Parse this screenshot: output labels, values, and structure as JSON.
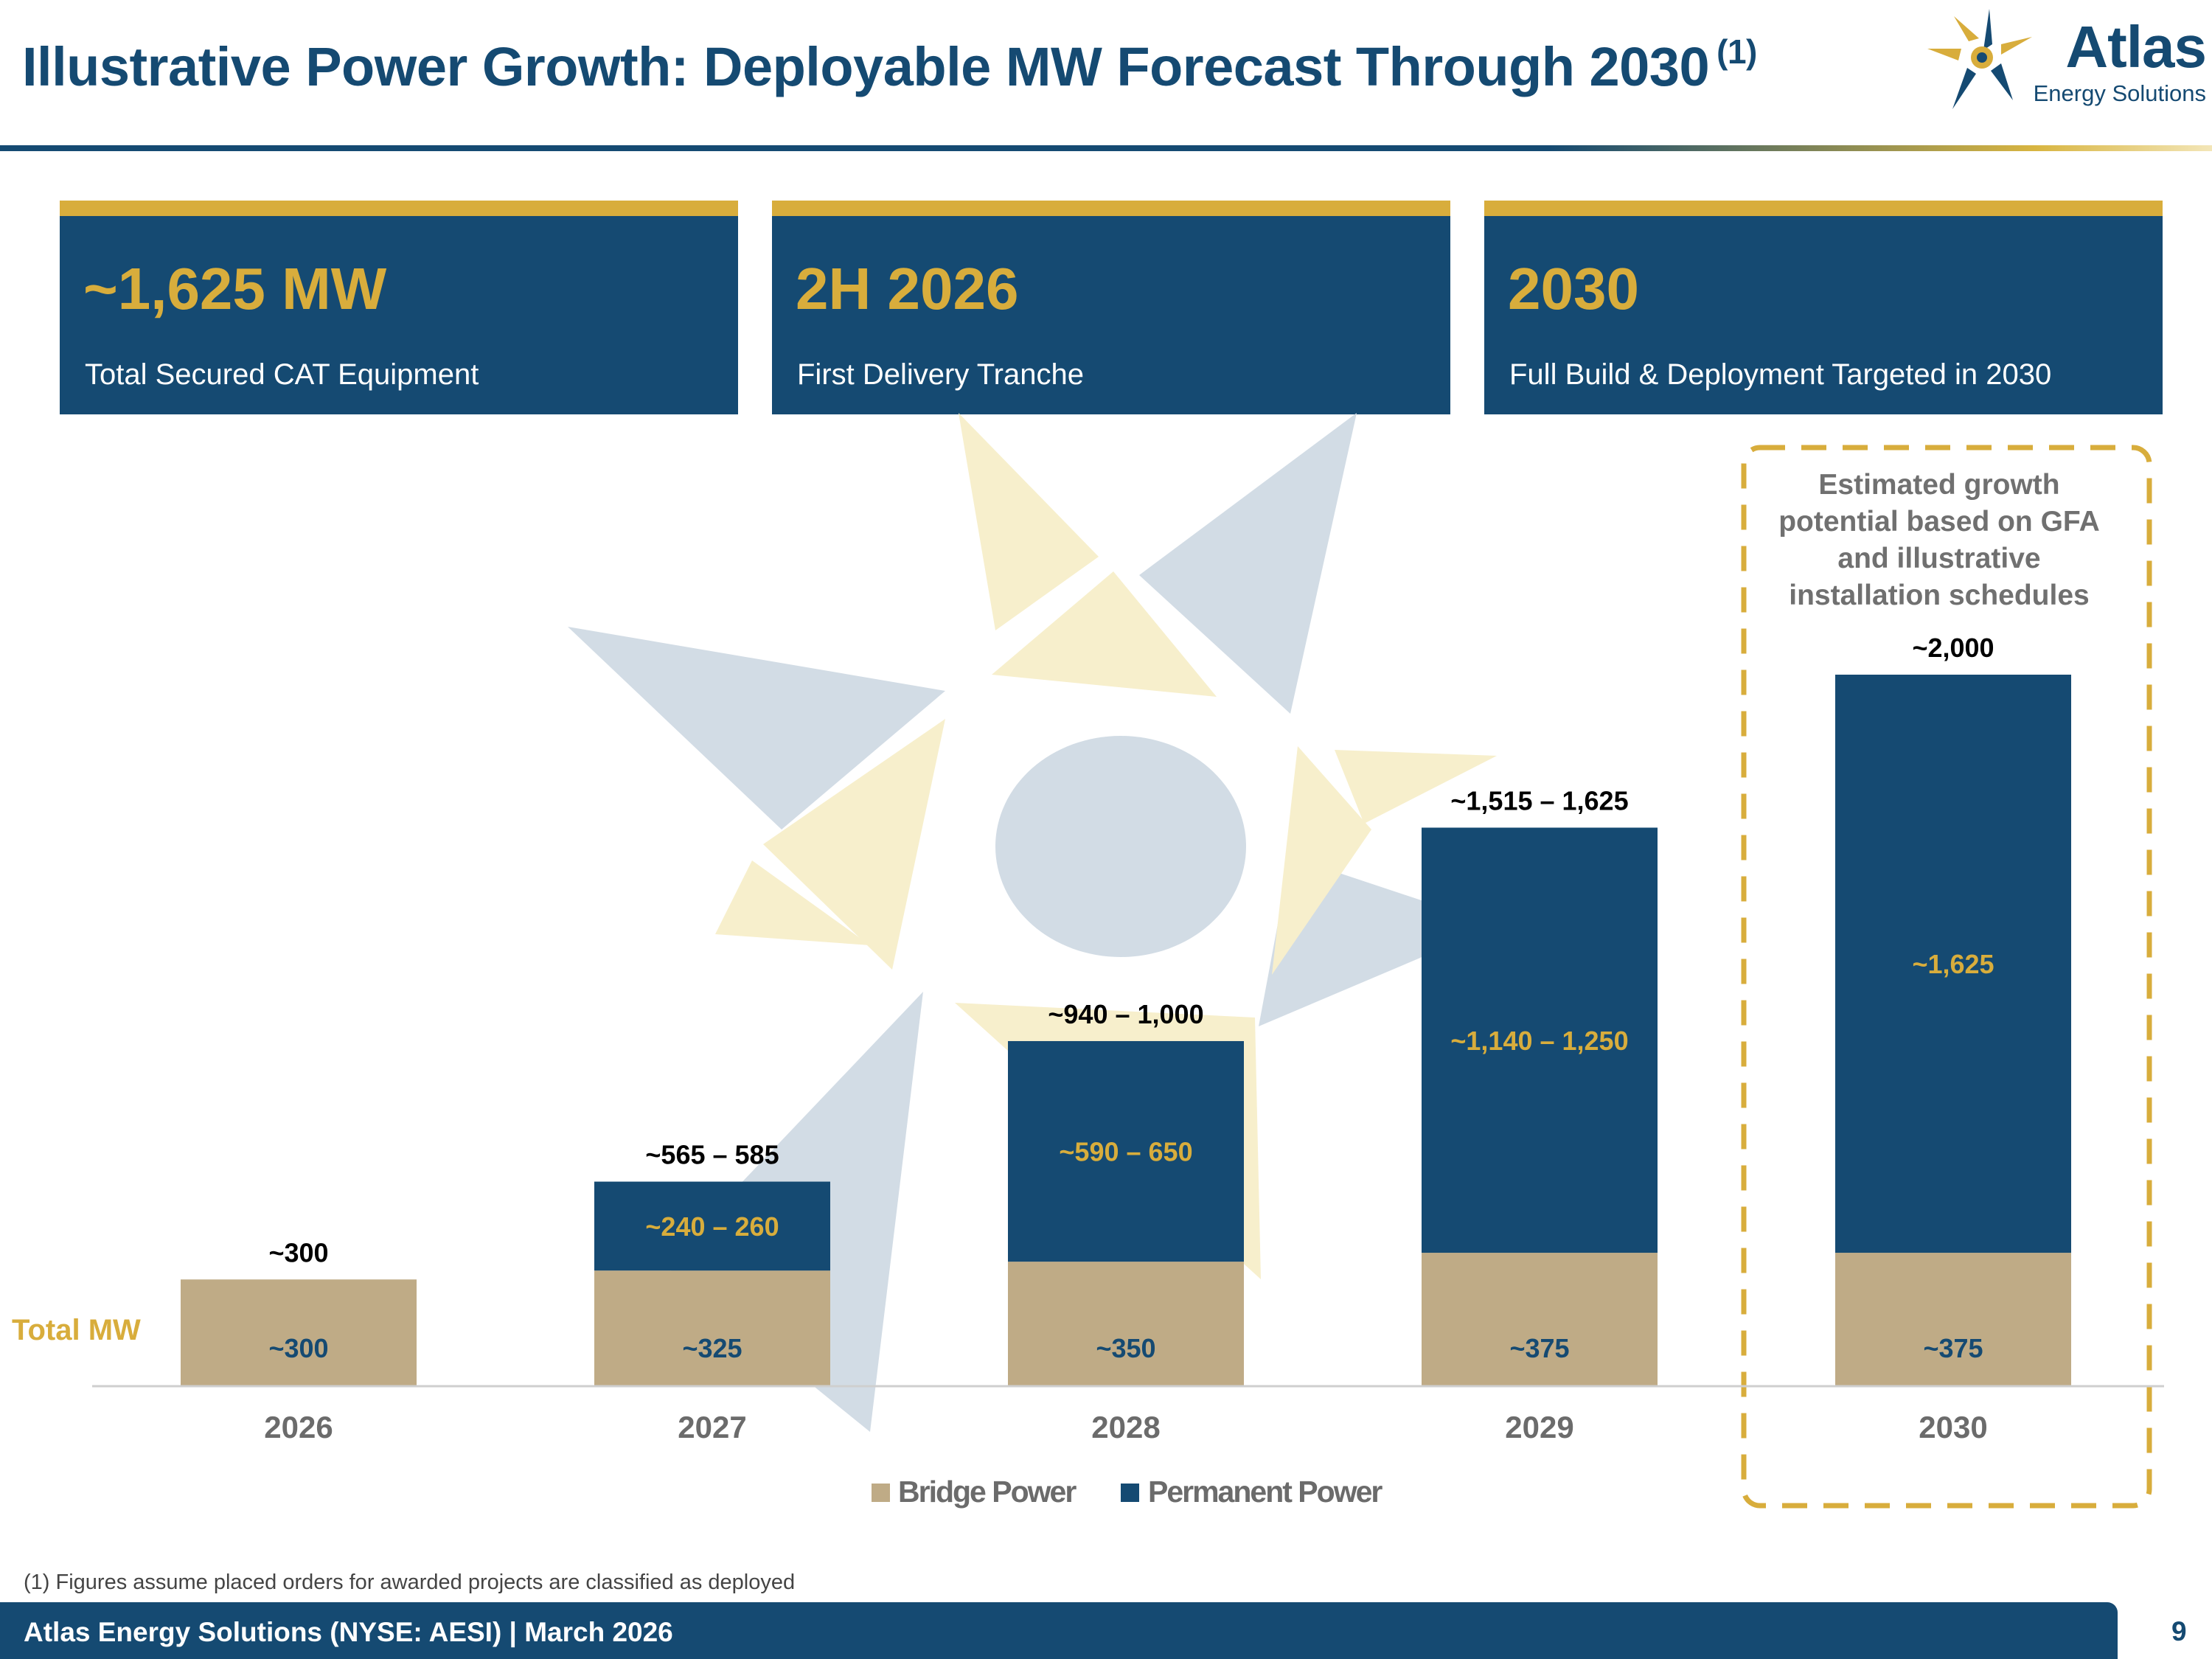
{
  "header": {
    "title": "Illustrative Power Growth: Deployable MW Forecast Through 2030",
    "title_footnote_ref": "(1)",
    "logo_name": "Atlas",
    "logo_sub": "Energy Solutions"
  },
  "kpis": [
    {
      "value": "~1,625 MW",
      "label": "Total Secured CAT Equipment"
    },
    {
      "value": "2H 2026",
      "label": "First Delivery Tranche"
    },
    {
      "value": "2030",
      "label": "Full Build & Deployment Targeted in 2030"
    }
  ],
  "colors": {
    "navy": "#154a72",
    "gold": "#d8ad3c",
    "bridge": "#bfab86",
    "watermark_gray": "#d2dce5",
    "watermark_yellow": "#f7efcc"
  },
  "chart_data": {
    "type": "bar",
    "stacked": true,
    "title": "",
    "xlabel": "",
    "ylabel": "Total MW",
    "ylim": [
      0,
      2080
    ],
    "categories": [
      "2026",
      "2027",
      "2028",
      "2029",
      "2030"
    ],
    "series": [
      {
        "name": "Bridge Power",
        "values": [
          300,
          325,
          350,
          375,
          375
        ],
        "labels": [
          "~300",
          "~325",
          "~350",
          "~375",
          "~375"
        ]
      },
      {
        "name": "Permanent Power",
        "values": [
          0,
          250,
          620,
          1195,
          1625
        ],
        "labels": [
          "",
          "~240 – 260",
          "~590 – 650",
          "~1,140 – 1,250",
          "~1,625"
        ]
      }
    ],
    "totals": [
      300,
      575,
      970,
      1570,
      2000
    ],
    "total_labels": [
      "~300",
      "~565 – 585",
      "~940 – 1,000",
      "~1,515 – 1,625",
      "~2,000"
    ],
    "legend": [
      "Bridge Power",
      "Permanent Power"
    ],
    "legend_position": "bottom-center",
    "annotation": {
      "lines": [
        "Estimated growth",
        "potential based on GFA",
        "and illustrative",
        "installation schedules"
      ],
      "applies_to": "2030"
    }
  },
  "footnote": "(1) Figures assume placed orders for awarded projects are classified as deployed",
  "footer": {
    "text": "Atlas Energy Solutions (NYSE: AESI)  | March 2026",
    "page_number": "9"
  }
}
